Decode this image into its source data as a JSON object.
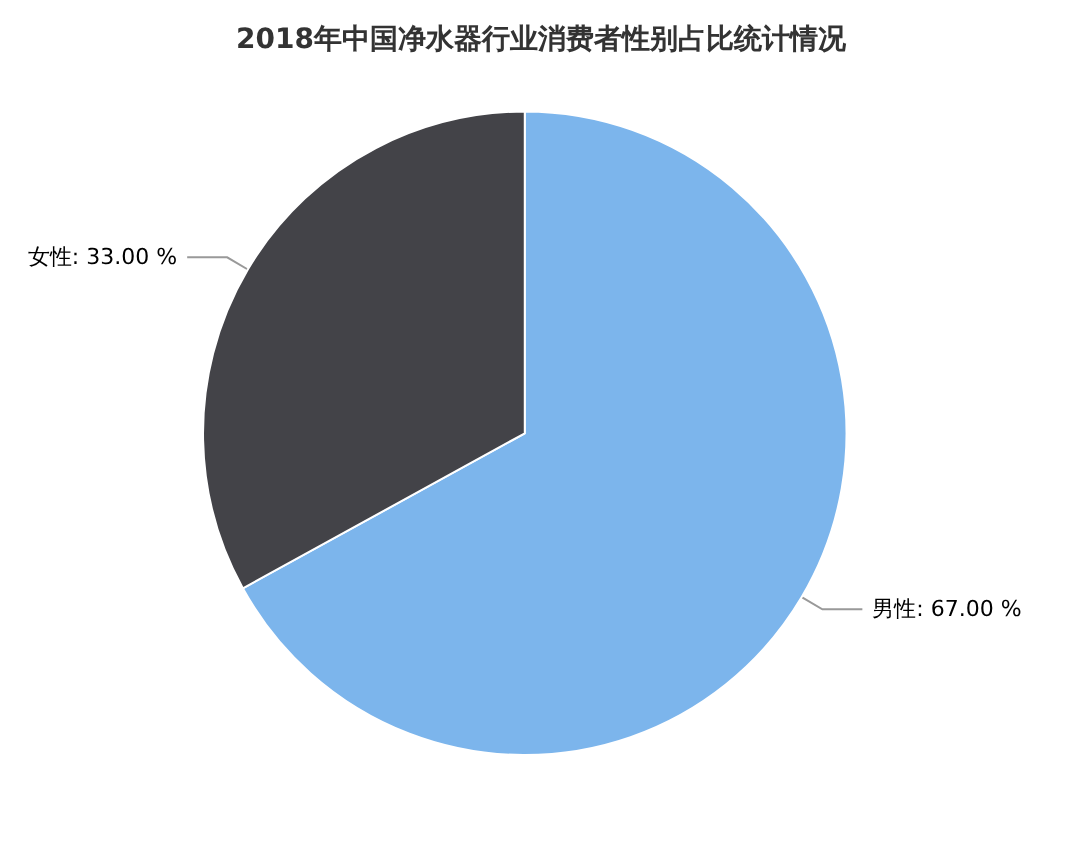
{
  "chart_data": {
    "type": "pie",
    "title": "2018年中国净水器行业消费者性别占比统计情况",
    "categories": [
      "男性",
      "女性"
    ],
    "values": [
      67,
      33
    ],
    "colors": [
      "#7cb5ec",
      "#434348"
    ],
    "value_labels": [
      "67.00 %",
      "33.00 %"
    ],
    "legend": false
  }
}
